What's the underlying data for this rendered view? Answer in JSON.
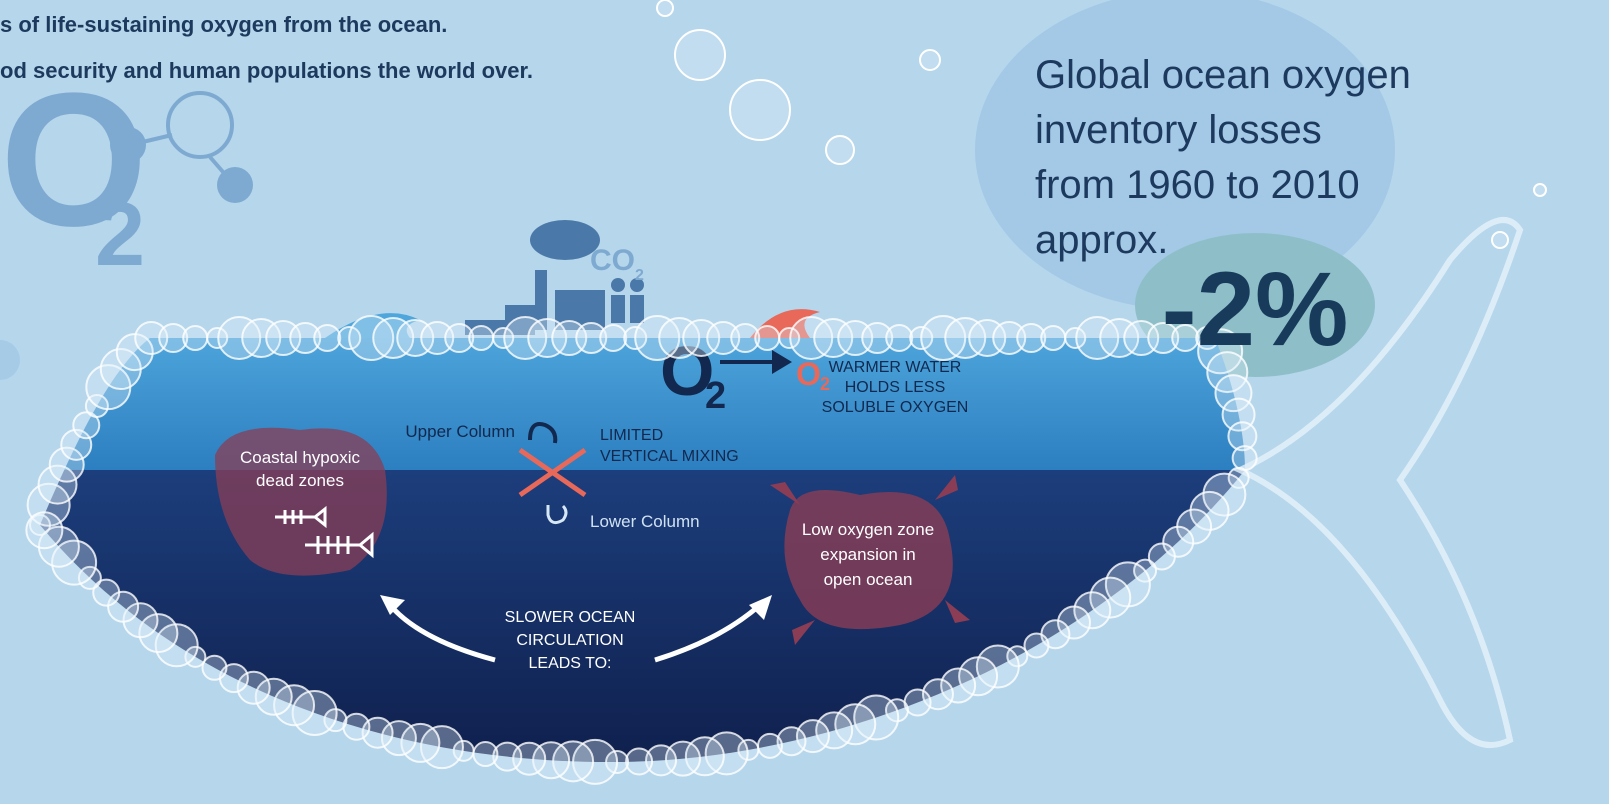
{
  "intro": {
    "lines": [
      "s of life-sustaining oxygen from the ocean.",
      "od security and human populations the world over."
    ]
  },
  "logo": {
    "symbol": "O",
    "subscript": "2"
  },
  "emissions": {
    "symbol": "CO",
    "subscript": "2"
  },
  "surface": {
    "oxygen": {
      "symbol": "O",
      "subscript": "2"
    },
    "warm_oxygen": {
      "symbol": "O",
      "subscript": "2"
    },
    "warmer_water": [
      "WARMER WATER",
      "HOLDS LESS",
      "SOLUBLE OXYGEN"
    ]
  },
  "mixing": {
    "upper": "Upper Column",
    "lower": "Lower Column",
    "limited": [
      "LIMITED",
      "VERTICAL MIXING"
    ]
  },
  "coastal": [
    "Coastal hypoxic",
    "dead zones"
  ],
  "open_ocean": [
    "Low oxygen zone",
    "expansion in",
    "open ocean"
  ],
  "circulation": [
    "SLOWER OCEAN",
    "CIRCULATION",
    "LEADS TO:"
  ],
  "stat": {
    "lines": [
      "Global ocean oxygen",
      "inventory losses",
      "from 1960 to 2010",
      "approx."
    ],
    "value": "-2%"
  }
}
